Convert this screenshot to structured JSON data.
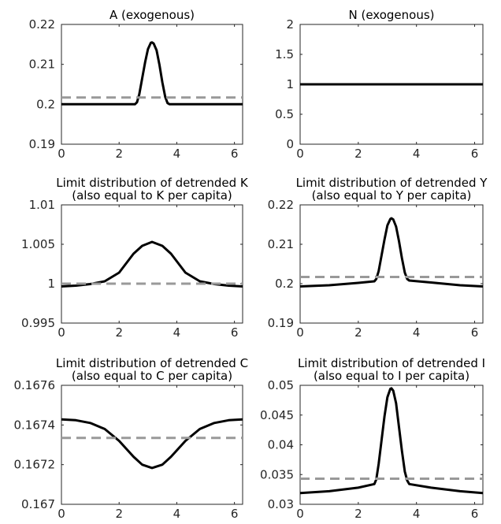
{
  "chart_data": [
    {
      "type": "line",
      "title": "A (exogenous)",
      "xlim": [
        0,
        6.2832
      ],
      "ylim": [
        0.19,
        0.22
      ],
      "xticks": [
        0,
        2,
        4,
        6
      ],
      "yticks": [
        "0.19",
        "0.2",
        "0.21",
        "0.22"
      ],
      "series": [
        {
          "style": "solid",
          "color": "#000000",
          "x": [
            0,
            2.55,
            2.62,
            2.7,
            2.8,
            2.9,
            3.0,
            3.1,
            3.14,
            3.2,
            3.3,
            3.4,
            3.5,
            3.6,
            3.68,
            3.75,
            6.2832
          ],
          "y": [
            0.2,
            0.2,
            0.2005,
            0.2025,
            0.2065,
            0.2105,
            0.2138,
            0.2154,
            0.2155,
            0.2152,
            0.2135,
            0.2098,
            0.2055,
            0.2018,
            0.2003,
            0.2,
            0.2
          ]
        },
        {
          "style": "dashed",
          "color": "#999999",
          "x": [
            0,
            6.2832
          ],
          "y": [
            0.2017,
            0.2017
          ]
        }
      ]
    },
    {
      "type": "line",
      "title": "N (exogenous)",
      "xlim": [
        0,
        6.2832
      ],
      "ylim": [
        0,
        2
      ],
      "xticks": [
        0,
        2,
        4,
        6
      ],
      "yticks": [
        "0",
        "0.5",
        "1",
        "1.5",
        "2"
      ],
      "series": [
        {
          "style": "solid",
          "color": "#000000",
          "x": [
            0,
            6.2832
          ],
          "y": [
            1,
            1
          ]
        }
      ]
    },
    {
      "type": "line",
      "title": [
        "Limit distribution of detrended K",
        "(also equal to K per capita)"
      ],
      "xlim": [
        0,
        6.2832
      ],
      "ylim": [
        0.995,
        1.01
      ],
      "xticks": [
        0,
        2,
        4,
        6
      ],
      "yticks": [
        "0.995",
        "1",
        "1.005",
        "1.01"
      ],
      "series": [
        {
          "style": "solid",
          "color": "#000000",
          "x": [
            0,
            0.5,
            1.0,
            1.5,
            2.0,
            2.5,
            2.8,
            3.1416,
            3.5,
            3.8,
            4.3,
            4.8,
            5.3,
            5.8,
            6.2832
          ],
          "y": [
            0.99965,
            0.99975,
            0.99995,
            1.0003,
            1.0014,
            1.0038,
            1.0048,
            1.0053,
            1.0048,
            1.0038,
            1.0014,
            1.0003,
            0.99995,
            0.99975,
            0.99965
          ]
        },
        {
          "style": "dashed",
          "color": "#999999",
          "x": [
            0,
            6.2832
          ],
          "y": [
            1.0,
            1.0
          ]
        }
      ]
    },
    {
      "type": "line",
      "title": [
        "Limit distribution of detrended Y",
        "(also equal to Y per capita)"
      ],
      "xlim": [
        0,
        6.2832
      ],
      "ylim": [
        0.19,
        0.22
      ],
      "xticks": [
        0,
        2,
        4,
        6
      ],
      "yticks": [
        "0.19",
        "0.2",
        "0.21",
        "0.22"
      ],
      "series": [
        {
          "style": "solid",
          "color": "#000000",
          "x": [
            0,
            1.0,
            2.0,
            2.55,
            2.62,
            2.7,
            2.8,
            2.9,
            3.0,
            3.1,
            3.14,
            3.2,
            3.3,
            3.4,
            3.5,
            3.6,
            3.68,
            3.75,
            4.5,
            5.5,
            6.2832
          ],
          "y": [
            0.1993,
            0.1996,
            0.2002,
            0.2006,
            0.2012,
            0.2032,
            0.2072,
            0.2112,
            0.2148,
            0.2164,
            0.2166,
            0.2163,
            0.2145,
            0.2108,
            0.2065,
            0.2028,
            0.2012,
            0.2008,
            0.2003,
            0.1996,
            0.1993
          ]
        },
        {
          "style": "dashed",
          "color": "#999999",
          "x": [
            0,
            6.2832
          ],
          "y": [
            0.2017,
            0.2017
          ]
        }
      ]
    },
    {
      "type": "line",
      "title": [
        "Limit distribution of detrended C",
        "(also equal to C per capita)"
      ],
      "xlim": [
        0,
        6.2832
      ],
      "ylim": [
        0.167,
        0.1676
      ],
      "xticks": [
        0,
        2,
        4,
        6
      ],
      "yticks": [
        "0.167",
        "0.1672",
        "0.1674",
        "0.1676"
      ],
      "series": [
        {
          "style": "solid",
          "color": "#000000",
          "x": [
            0,
            0.5,
            1.0,
            1.5,
            2.0,
            2.5,
            2.8,
            3.1416,
            3.5,
            3.8,
            4.3,
            4.8,
            5.3,
            5.8,
            6.2832
          ],
          "y": [
            0.167428,
            0.167424,
            0.16741,
            0.16738,
            0.16732,
            0.16724,
            0.1672,
            0.167183,
            0.1672,
            0.16724,
            0.16732,
            0.16738,
            0.16741,
            0.167424,
            0.167428
          ]
        },
        {
          "style": "dashed",
          "color": "#999999",
          "x": [
            0,
            6.2832
          ],
          "y": [
            0.167335,
            0.167335
          ]
        }
      ]
    },
    {
      "type": "line",
      "title": [
        "Limit distribution of detrended I",
        "(also equal to I per capita)"
      ],
      "xlim": [
        0,
        6.2832
      ],
      "ylim": [
        0.03,
        0.05
      ],
      "xticks": [
        0,
        2,
        4,
        6
      ],
      "yticks": [
        "0.03",
        "0.035",
        "0.04",
        "0.045",
        "0.05"
      ],
      "series": [
        {
          "style": "solid",
          "color": "#000000",
          "x": [
            0,
            1.0,
            2.0,
            2.55,
            2.62,
            2.7,
            2.8,
            2.9,
            3.0,
            3.1,
            3.14,
            3.2,
            3.3,
            3.4,
            3.5,
            3.6,
            3.68,
            3.75,
            4.5,
            5.5,
            6.2832
          ],
          "y": [
            0.0319,
            0.0322,
            0.0328,
            0.0334,
            0.0342,
            0.0368,
            0.0408,
            0.0448,
            0.048,
            0.0494,
            0.0495,
            0.0491,
            0.047,
            0.043,
            0.039,
            0.0355,
            0.034,
            0.0334,
            0.0328,
            0.0322,
            0.0319
          ]
        },
        {
          "style": "dashed",
          "color": "#999999",
          "x": [
            0,
            6.2832
          ],
          "y": [
            0.0343,
            0.0343
          ]
        }
      ]
    }
  ]
}
